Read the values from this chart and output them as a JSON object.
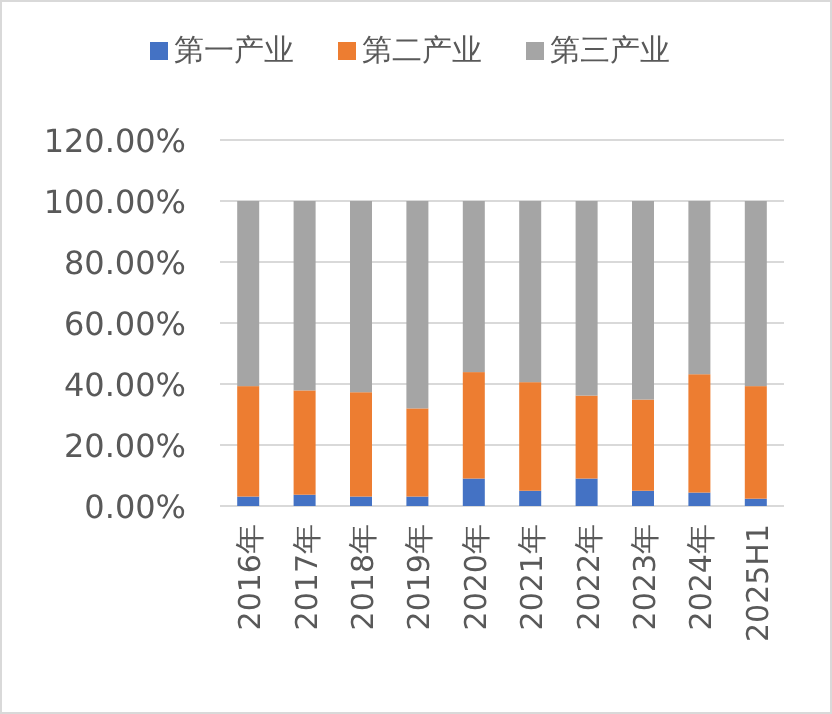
{
  "chart_data": {
    "type": "bar",
    "stacked": true,
    "legend": "top",
    "grid": "y",
    "categories": [
      "2016年",
      "2017年",
      "2018年",
      "2019年",
      "2020年",
      "2021年",
      "2022年",
      "2023年",
      "2024年",
      "2025H1"
    ],
    "series": [
      {
        "name": "第一产业",
        "color": "#4472c4",
        "values": [
          3.1,
          3.7,
          3.1,
          3.1,
          9.0,
          5.0,
          9.0,
          5.0,
          4.4,
          2.4
        ]
      },
      {
        "name": "第二产业",
        "color": "#ed7d31",
        "values": [
          36.2,
          34.2,
          34.2,
          28.9,
          34.9,
          35.6,
          27.2,
          29.9,
          38.8,
          36.9
        ]
      },
      {
        "name": "第三产业",
        "color": "#a5a5a5",
        "values": [
          60.7,
          62.1,
          62.7,
          68.0,
          56.1,
          59.4,
          63.8,
          65.1,
          56.8,
          60.7
        ]
      }
    ],
    "ylim": [
      0,
      120
    ],
    "yticks": [
      {
        "value": 0,
        "label": "0.00%"
      },
      {
        "value": 20,
        "label": "20.00%"
      },
      {
        "value": 40,
        "label": "40.00%"
      },
      {
        "value": 60,
        "label": "60.00%"
      },
      {
        "value": 80,
        "label": "80.00%"
      },
      {
        "value": 100,
        "label": "100.00%"
      },
      {
        "value": 120,
        "label": "120.00%"
      }
    ]
  }
}
